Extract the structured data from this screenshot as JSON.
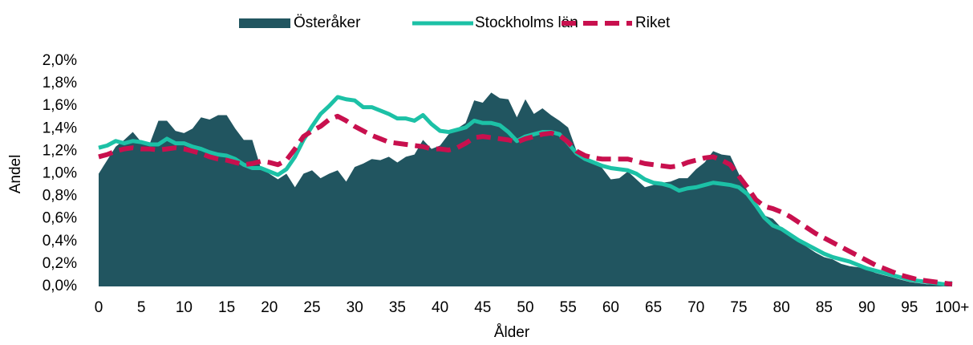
{
  "chart_data": {
    "type": "area",
    "x_label": "Ålder",
    "y_label": "Andel",
    "categories": [
      "0",
      null,
      null,
      null,
      null,
      "5",
      null,
      null,
      null,
      null,
      "10",
      null,
      null,
      null,
      null,
      "15",
      null,
      null,
      null,
      null,
      "20",
      null,
      null,
      null,
      null,
      "25",
      null,
      null,
      null,
      null,
      "30",
      null,
      null,
      null,
      null,
      "35",
      null,
      null,
      null,
      null,
      "40",
      null,
      null,
      null,
      null,
      "45",
      null,
      null,
      null,
      null,
      "50",
      null,
      null,
      null,
      null,
      "55",
      null,
      null,
      null,
      null,
      "60",
      null,
      null,
      null,
      null,
      "65",
      null,
      null,
      null,
      null,
      "70",
      null,
      null,
      null,
      null,
      "75",
      null,
      null,
      null,
      null,
      "80",
      null,
      null,
      null,
      null,
      "85",
      null,
      null,
      null,
      null,
      "90",
      null,
      null,
      null,
      null,
      "95",
      null,
      null,
      null,
      null,
      "100+"
    ],
    "ylim": [
      0,
      2.0
    ],
    "yticks": [
      {
        "value": 0,
        "label": "0,0%"
      },
      {
        "value": 0.2,
        "label": "0,2%"
      },
      {
        "value": 0.4,
        "label": "0,4%"
      },
      {
        "value": 0.6,
        "label": "0,6%"
      },
      {
        "value": 0.8,
        "label": "0,8%"
      },
      {
        "value": 1.0,
        "label": "1,0%"
      },
      {
        "value": 1.2,
        "label": "1,2%"
      },
      {
        "value": 1.4,
        "label": "1,4%"
      },
      {
        "value": 1.6,
        "label": "1,6%"
      },
      {
        "value": 1.8,
        "label": "1,8%"
      },
      {
        "value": 2.0,
        "label": "2,0%"
      }
    ],
    "grid": false,
    "legend": "top",
    "series": [
      {
        "name": "Österåker",
        "type": "area",
        "color": "#215560",
        "values": [
          1.0,
          1.12,
          1.24,
          1.3,
          1.37,
          1.28,
          1.27,
          1.47,
          1.47,
          1.38,
          1.36,
          1.4,
          1.5,
          1.48,
          1.52,
          1.52,
          1.4,
          1.3,
          1.3,
          1.05,
          1.0,
          0.95,
          1.0,
          0.88,
          1.0,
          1.03,
          0.96,
          1.0,
          1.03,
          0.93,
          1.06,
          1.09,
          1.13,
          1.12,
          1.15,
          1.1,
          1.15,
          1.17,
          1.3,
          1.22,
          1.25,
          1.35,
          1.4,
          1.45,
          1.65,
          1.63,
          1.72,
          1.67,
          1.66,
          1.5,
          1.66,
          1.53,
          1.58,
          1.52,
          1.47,
          1.41,
          1.2,
          1.13,
          1.1,
          1.05,
          0.95,
          0.96,
          1.02,
          0.95,
          0.88,
          0.9,
          0.92,
          0.93,
          0.96,
          0.96,
          1.04,
          1.1,
          1.2,
          1.17,
          1.16,
          1.0,
          0.85,
          0.7,
          0.63,
          0.6,
          0.52,
          0.45,
          0.4,
          0.35,
          0.3,
          0.26,
          0.24,
          0.2,
          0.18,
          0.17,
          0.15,
          0.12,
          0.1,
          0.08,
          0.06,
          0.04,
          0.03,
          0.02,
          0.02,
          0.01,
          0.01
        ]
      },
      {
        "name": "Stockholms län",
        "type": "line",
        "color": "#1cc1a6",
        "values": [
          1.23,
          1.25,
          1.29,
          1.27,
          1.29,
          1.28,
          1.26,
          1.26,
          1.31,
          1.27,
          1.27,
          1.24,
          1.22,
          1.19,
          1.17,
          1.16,
          1.13,
          1.08,
          1.05,
          1.05,
          1.02,
          0.99,
          1.04,
          1.15,
          1.3,
          1.42,
          1.53,
          1.6,
          1.68,
          1.66,
          1.65,
          1.59,
          1.59,
          1.56,
          1.53,
          1.49,
          1.49,
          1.47,
          1.52,
          1.44,
          1.38,
          1.37,
          1.39,
          1.41,
          1.47,
          1.45,
          1.45,
          1.43,
          1.37,
          1.29,
          1.33,
          1.35,
          1.37,
          1.37,
          1.35,
          1.27,
          1.18,
          1.13,
          1.1,
          1.07,
          1.05,
          1.04,
          1.03,
          1.0,
          0.95,
          0.92,
          0.91,
          0.89,
          0.85,
          0.87,
          0.88,
          0.9,
          0.92,
          0.91,
          0.9,
          0.88,
          0.82,
          0.72,
          0.61,
          0.54,
          0.51,
          0.46,
          0.41,
          0.37,
          0.33,
          0.29,
          0.26,
          0.24,
          0.22,
          0.19,
          0.16,
          0.14,
          0.12,
          0.1,
          0.08,
          0.06,
          0.05,
          0.04,
          0.03,
          0.02,
          0.03
        ]
      },
      {
        "name": "Riket",
        "type": "line",
        "dashed": true,
        "color": "#c8104e",
        "values": [
          1.15,
          1.17,
          1.2,
          1.22,
          1.23,
          1.22,
          1.22,
          1.21,
          1.22,
          1.23,
          1.22,
          1.2,
          1.18,
          1.15,
          1.13,
          1.12,
          1.1,
          1.08,
          1.09,
          1.11,
          1.1,
          1.08,
          1.12,
          1.22,
          1.33,
          1.38,
          1.42,
          1.48,
          1.51,
          1.47,
          1.42,
          1.38,
          1.34,
          1.31,
          1.28,
          1.27,
          1.26,
          1.25,
          1.24,
          1.22,
          1.22,
          1.21,
          1.23,
          1.27,
          1.32,
          1.33,
          1.32,
          1.31,
          1.3,
          1.28,
          1.31,
          1.33,
          1.35,
          1.36,
          1.34,
          1.28,
          1.2,
          1.16,
          1.14,
          1.13,
          1.13,
          1.13,
          1.13,
          1.11,
          1.09,
          1.08,
          1.07,
          1.06,
          1.07,
          1.1,
          1.12,
          1.14,
          1.15,
          1.12,
          1.08,
          0.98,
          0.88,
          0.77,
          0.71,
          0.69,
          0.66,
          0.62,
          0.57,
          0.52,
          0.47,
          0.43,
          0.39,
          0.35,
          0.31,
          0.27,
          0.23,
          0.19,
          0.16,
          0.13,
          0.1,
          0.08,
          0.06,
          0.05,
          0.04,
          0.03,
          0.02
        ]
      }
    ]
  }
}
